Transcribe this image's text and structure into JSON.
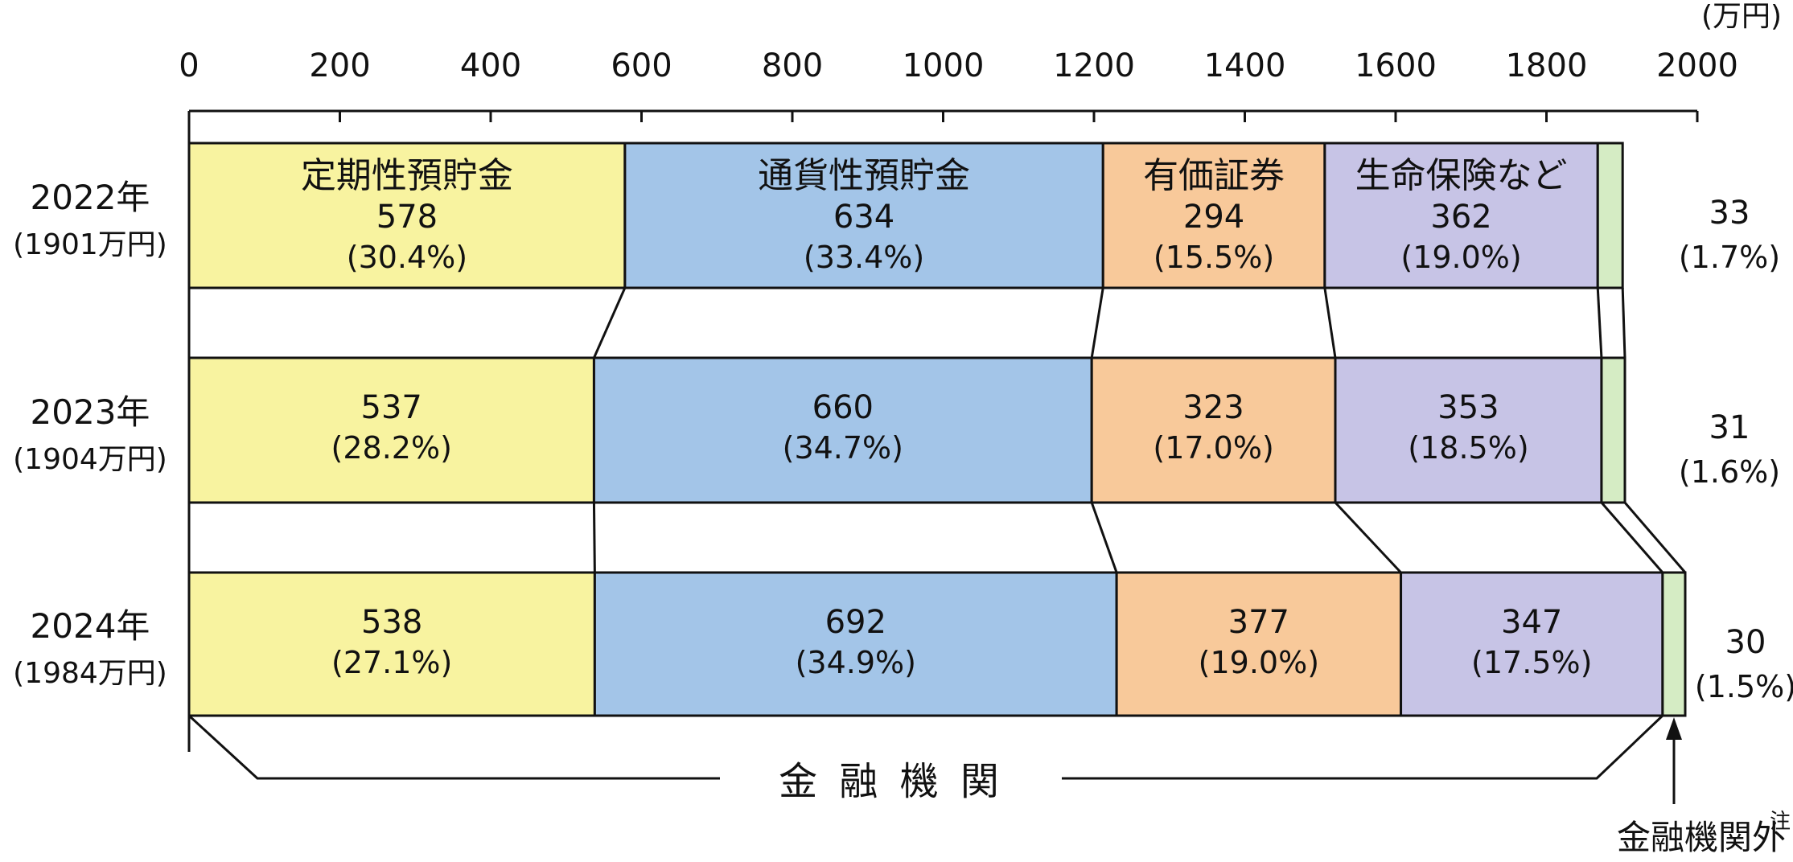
{
  "chart_data": {
    "type": "bar",
    "orientation": "horizontal",
    "stacked": true,
    "unit_label": "(万円)",
    "xlim": [
      0,
      2000
    ],
    "x_ticks": [
      "0",
      "200",
      "400",
      "600",
      "800",
      "1000",
      "1200",
      "1400",
      "1600",
      "1800",
      "2000"
    ],
    "categories": [
      {
        "year": "2022年",
        "total": "(1901万円)"
      },
      {
        "year": "2023年",
        "total": "(1904万円)"
      },
      {
        "year": "2024年",
        "total": "(1984万円)"
      }
    ],
    "series": [
      {
        "name": "定期性預貯金",
        "color": "#f8f3a0",
        "values": [
          578,
          537,
          538
        ],
        "labels": [
          "578",
          "537",
          "538"
        ],
        "pct": [
          "(30.4%)",
          "(28.2%)",
          "(27.1%)"
        ]
      },
      {
        "name": "通貨性預貯金",
        "color": "#a3c5e8",
        "values": [
          634,
          660,
          692
        ],
        "labels": [
          "634",
          "660",
          "692"
        ],
        "pct": [
          "(33.4%)",
          "(34.7%)",
          "(34.9%)"
        ]
      },
      {
        "name": "有価証券",
        "color": "#f8c99a",
        "values": [
          294,
          323,
          377
        ],
        "labels": [
          "294",
          "323",
          "377"
        ],
        "pct": [
          "(15.5%)",
          "(17.0%)",
          "(19.0%)"
        ]
      },
      {
        "name": "生命保険など",
        "color": "#c7c4e6",
        "values": [
          362,
          353,
          347
        ],
        "labels": [
          "362",
          "353",
          "347"
        ],
        "pct": [
          "(19.0%)",
          "(18.5%)",
          "(17.5%)"
        ]
      },
      {
        "name": "",
        "color": "#d5ecc4",
        "values": [
          33,
          31,
          30
        ],
        "labels": [
          "33",
          "31",
          "30"
        ],
        "pct": [
          "(1.7%)",
          "(1.6%)",
          "(1.5%)"
        ]
      }
    ],
    "annotations": {
      "financial": "金 融 機 関",
      "outside": "金融機関外",
      "note_mark": "注"
    }
  }
}
